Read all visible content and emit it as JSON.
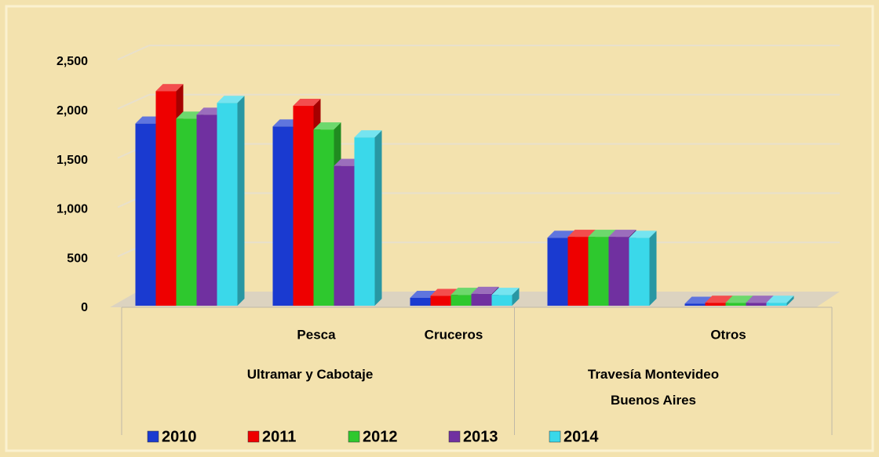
{
  "chart_data": {
    "type": "bar3d",
    "category_groups": [
      {
        "name": "Ultramar y Cabotaje",
        "categories": [
          null,
          "Pesca",
          "Cruceros"
        ]
      },
      {
        "name": "Travesía Montevideo Buenos Aires",
        "categories": [
          null,
          "Otros"
        ]
      }
    ],
    "series": [
      {
        "name": "2010",
        "color": "#1a3ad0",
        "values": [
          1850,
          1820,
          80,
          690,
          20
        ]
      },
      {
        "name": "2011",
        "color": "#ee0000",
        "values": [
          2180,
          2030,
          100,
          700,
          30
        ]
      },
      {
        "name": "2012",
        "color": "#2ec82e",
        "values": [
          1900,
          1790,
          110,
          700,
          30
        ]
      },
      {
        "name": "2013",
        "color": "#7030a0",
        "values": [
          1940,
          1420,
          120,
          700,
          30
        ]
      },
      {
        "name": "2014",
        "color": "#3ad8ea",
        "values": [
          2060,
          1710,
          110,
          690,
          30
        ]
      }
    ],
    "ylim": [
      0,
      2500
    ],
    "yticks": [
      0,
      {
        "value": 500,
        "label": "500"
      },
      {
        "value": 1000,
        "label": "1,000"
      },
      {
        "value": 1500,
        "label": "1,500"
      },
      {
        "value": 2000,
        "label": "2,000"
      },
      {
        "value": 2500,
        "label": "2,500"
      }
    ],
    "grid": true,
    "legend": "bottom"
  }
}
